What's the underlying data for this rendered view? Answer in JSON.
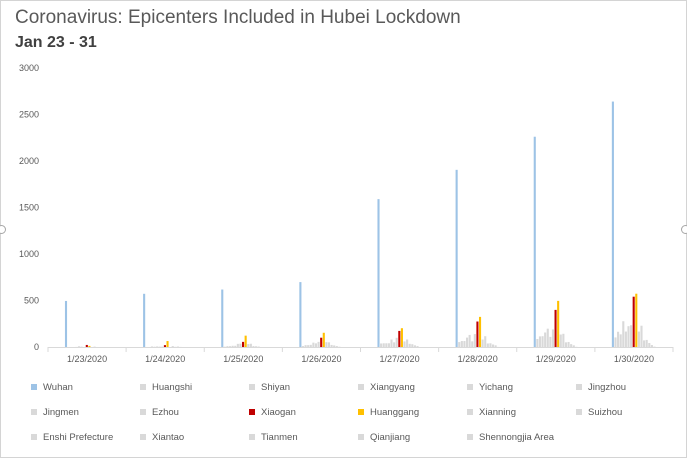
{
  "title": "Coronavirus: Epicenters Included in Hubei Lockdown",
  "subtitle": "Jan 23 - 31",
  "chart_data": {
    "type": "bar",
    "title": "Coronavirus: Epicenters Included in Hubei Lockdown",
    "subtitle": "Jan 23 - 31",
    "xlabel": "",
    "ylabel": "",
    "ylim": [
      0,
      3000
    ],
    "yticks": [
      0,
      500,
      1000,
      1500,
      2000,
      2500,
      3000
    ],
    "grid": false,
    "legend_position": "bottom",
    "categories": [
      "1/23/2020",
      "1/24/2020",
      "1/25/2020",
      "1/26/2020",
      "1/27/2020",
      "1/28/2020",
      "1/29/2020",
      "1/30/2020"
    ],
    "series": [
      {
        "name": "Wuhan",
        "color": "#9dc3e6",
        "values": [
          495,
          572,
          618,
          698,
          1590,
          1905,
          2261,
          2639
        ]
      },
      {
        "name": "Huangshi",
        "color": "#d9d9d9",
        "values": [
          0,
          0,
          3,
          10,
          38,
          53,
          86,
          103
        ]
      },
      {
        "name": "Shiyan",
        "color": "#d9d9d9",
        "values": [
          0,
          0,
          9,
          20,
          40,
          64,
          114,
          164
        ]
      },
      {
        "name": "Xiangyang",
        "color": "#d9d9d9",
        "values": [
          0,
          6,
          9,
          20,
          40,
          64,
          116,
          136
        ]
      },
      {
        "name": "Yichang",
        "color": "#d9d9d9",
        "values": [
          1,
          3,
          13,
          23,
          40,
          101,
          156,
          277
        ]
      },
      {
        "name": "Jingzhou",
        "color": "#d9d9d9",
        "values": [
          8,
          6,
          13,
          47,
          80,
          130,
          197,
          166
        ]
      },
      {
        "name": "Jingmen",
        "color": "#d9d9d9",
        "values": [
          4,
          4,
          34,
          39,
          50,
          61,
          109,
          224
        ]
      },
      {
        "name": "Ezhou",
        "color": "#d9d9d9",
        "values": [
          0,
          4,
          36,
          55,
          99,
          139,
          189,
          234
        ]
      },
      {
        "name": "Xiaogan",
        "color": "#c00000",
        "values": [
          22,
          20,
          55,
          100,
          173,
          274,
          399,
          541
        ]
      },
      {
        "name": "Huanggang",
        "color": "#ffc000",
        "values": [
          12,
          64,
          122,
          153,
          202,
          324,
          496,
          573
        ]
      },
      {
        "name": "Xianning",
        "color": "#d9d9d9",
        "values": [
          0,
          0,
          32,
          52,
          60,
          80,
          134,
          166
        ]
      },
      {
        "name": "Suizhou",
        "color": "#d9d9d9",
        "values": [
          4,
          10,
          35,
          50,
          81,
          116,
          142,
          229
        ]
      },
      {
        "name": "Enshi Prefecture",
        "color": "#d9d9d9",
        "values": [
          0,
          2,
          10,
          22,
          34,
          38,
          50,
          71
        ]
      },
      {
        "name": "Xiantao",
        "color": "#d9d9d9",
        "values": [
          0,
          5,
          8,
          17,
          30,
          40,
          54,
          76
        ]
      },
      {
        "name": "Tianmen",
        "color": "#d9d9d9",
        "values": [
          0,
          1,
          5,
          10,
          18,
          27,
          31,
          43
        ]
      },
      {
        "name": "Qianjiang",
        "color": "#d9d9d9",
        "values": [
          0,
          0,
          0,
          3,
          10,
          18,
          18,
          21
        ]
      },
      {
        "name": "Shennongjia Area",
        "color": "#d9d9d9",
        "values": [
          0,
          0,
          0,
          0,
          0,
          1,
          2,
          4
        ]
      }
    ]
  }
}
